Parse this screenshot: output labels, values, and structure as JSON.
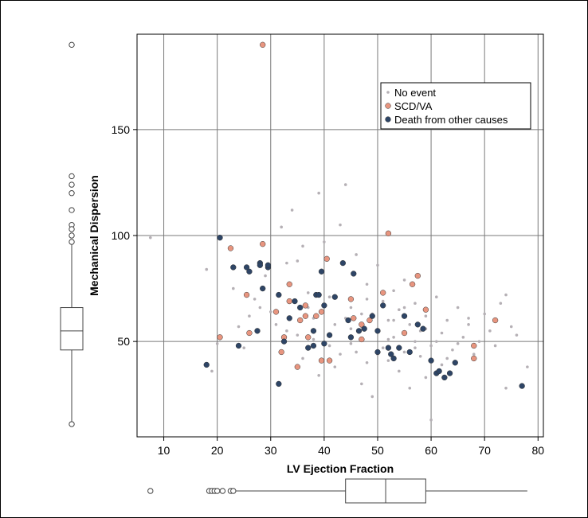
{
  "chart_data": {
    "type": "scatter",
    "xlabel": "LV Ejection Fraction",
    "ylabel": "Mechanical Dispersion",
    "xlim": [
      5,
      81
    ],
    "ylim": [
      5,
      195
    ],
    "x_ticks": [
      10,
      20,
      30,
      40,
      50,
      60,
      70,
      80
    ],
    "y_ticks": [
      50,
      100,
      150
    ],
    "grid": true,
    "legend_placement": "top-right",
    "legend": [
      {
        "label": "No event",
        "series": "no_event"
      },
      {
        "label": "SCD/VA",
        "series": "scd_va"
      },
      {
        "label": "Death from other causes",
        "series": "death_other"
      }
    ],
    "colors": {
      "no_event": "#b5b0b5",
      "scd_va": "#e8957f",
      "death_other": "#2e4566",
      "grid": "#7a7a7a"
    },
    "series": [
      {
        "key": "no_event",
        "name": "No event",
        "points": [
          [
            7.5,
            99
          ],
          [
            18,
            84
          ],
          [
            19,
            36
          ],
          [
            20,
            49
          ],
          [
            23,
            75
          ],
          [
            24,
            57
          ],
          [
            25,
            47
          ],
          [
            26,
            62
          ],
          [
            27,
            70
          ],
          [
            28,
            66
          ],
          [
            29,
            81
          ],
          [
            30,
            64
          ],
          [
            31,
            58
          ],
          [
            32,
            104
          ],
          [
            33,
            87
          ],
          [
            34,
            112
          ],
          [
            35,
            88
          ],
          [
            35,
            53
          ],
          [
            36,
            95
          ],
          [
            37,
            73
          ],
          [
            38,
            51
          ],
          [
            38,
            61
          ],
          [
            39,
            120
          ],
          [
            40,
            97
          ],
          [
            41,
            71
          ],
          [
            42,
            58
          ],
          [
            43,
            44
          ],
          [
            43,
            105
          ],
          [
            44,
            124
          ],
          [
            45,
            66
          ],
          [
            45,
            49
          ],
          [
            46,
            91
          ],
          [
            47,
            57
          ],
          [
            48,
            77
          ],
          [
            48,
            40
          ],
          [
            49,
            63
          ],
          [
            50,
            55
          ],
          [
            50,
            86
          ],
          [
            51,
            47
          ],
          [
            51,
            69
          ],
          [
            52,
            60
          ],
          [
            52,
            41
          ],
          [
            53,
            74
          ],
          [
            53,
            52
          ],
          [
            54,
            65
          ],
          [
            55,
            45
          ],
          [
            55,
            79
          ],
          [
            56,
            58
          ],
          [
            57,
            50
          ],
          [
            57,
            68
          ],
          [
            58,
            55
          ],
          [
            58,
            43
          ],
          [
            59,
            62
          ],
          [
            60,
            48
          ],
          [
            60,
            13
          ],
          [
            61,
            71
          ],
          [
            62,
            54
          ],
          [
            62,
            39
          ],
          [
            63,
            60
          ],
          [
            64,
            46
          ],
          [
            65,
            66
          ],
          [
            66,
            52
          ],
          [
            67,
            58
          ],
          [
            68,
            44
          ],
          [
            69,
            50
          ],
          [
            70,
            63
          ],
          [
            71,
            55
          ],
          [
            72,
            48
          ],
          [
            73,
            68
          ],
          [
            74,
            72
          ],
          [
            74,
            28
          ],
          [
            75,
            57
          ],
          [
            76,
            53
          ],
          [
            78,
            38
          ],
          [
            36,
            42
          ],
          [
            39,
            34
          ],
          [
            42,
            38
          ],
          [
            47,
            30
          ],
          [
            49,
            24
          ],
          [
            54,
            36
          ],
          [
            56,
            28
          ],
          [
            59,
            33
          ],
          [
            33,
            55
          ],
          [
            37,
            66
          ],
          [
            41,
            48
          ],
          [
            44,
            61
          ],
          [
            46,
            45
          ],
          [
            48,
            70
          ],
          [
            50,
            44
          ],
          [
            53,
            60
          ],
          [
            55,
            66
          ],
          [
            57,
            47
          ],
          [
            59,
            56
          ],
          [
            61,
            50
          ],
          [
            63,
            42
          ],
          [
            65,
            49
          ],
          [
            67,
            61
          ],
          [
            45,
            56
          ],
          [
            47,
            63
          ],
          [
            52,
            51
          ]
        ]
      },
      {
        "key": "scd_va",
        "name": "SCD/VA",
        "points": [
          [
            28.5,
            190
          ],
          [
            20.5,
            52
          ],
          [
            22.5,
            94
          ],
          [
            25.5,
            72
          ],
          [
            26,
            54
          ],
          [
            28.5,
            96
          ],
          [
            31,
            64
          ],
          [
            32,
            45
          ],
          [
            32.5,
            52
          ],
          [
            33.5,
            69
          ],
          [
            33.5,
            77
          ],
          [
            35,
            38
          ],
          [
            35.5,
            60
          ],
          [
            36.5,
            62
          ],
          [
            36.5,
            67
          ],
          [
            37,
            52
          ],
          [
            38.5,
            62
          ],
          [
            39.5,
            64
          ],
          [
            39.5,
            41
          ],
          [
            40.5,
            89
          ],
          [
            41,
            41
          ],
          [
            45,
            70
          ],
          [
            45.5,
            61
          ],
          [
            47,
            58
          ],
          [
            47,
            51
          ],
          [
            48.5,
            60
          ],
          [
            51,
            73
          ],
          [
            52,
            101
          ],
          [
            55,
            54
          ],
          [
            56.5,
            77
          ],
          [
            57.5,
            81
          ],
          [
            59,
            65
          ],
          [
            68,
            48
          ],
          [
            68,
            42
          ],
          [
            72,
            60
          ]
        ]
      },
      {
        "key": "death_other",
        "name": "Death from other causes",
        "points": [
          [
            18,
            39
          ],
          [
            20.5,
            99
          ],
          [
            23,
            85
          ],
          [
            24,
            48
          ],
          [
            25.5,
            85
          ],
          [
            26,
            83
          ],
          [
            27.5,
            55
          ],
          [
            28,
            87
          ],
          [
            28,
            86
          ],
          [
            28.5,
            75
          ],
          [
            29.5,
            85
          ],
          [
            29.5,
            86
          ],
          [
            31.5,
            72
          ],
          [
            31.5,
            30
          ],
          [
            32.5,
            50
          ],
          [
            33.5,
            61
          ],
          [
            34.5,
            69
          ],
          [
            35.5,
            66
          ],
          [
            37,
            47
          ],
          [
            38,
            48
          ],
          [
            38,
            55
          ],
          [
            38.5,
            72
          ],
          [
            39,
            72
          ],
          [
            39.5,
            83
          ],
          [
            40,
            67
          ],
          [
            40,
            49
          ],
          [
            41,
            53
          ],
          [
            42,
            71
          ],
          [
            43.5,
            87
          ],
          [
            44.5,
            60
          ],
          [
            45,
            52
          ],
          [
            45.5,
            82
          ],
          [
            46.5,
            55
          ],
          [
            47.5,
            56
          ],
          [
            49,
            62
          ],
          [
            50,
            55
          ],
          [
            50,
            45
          ],
          [
            51,
            67
          ],
          [
            52,
            47
          ],
          [
            52.5,
            44
          ],
          [
            53,
            42
          ],
          [
            54,
            47
          ],
          [
            55,
            62
          ],
          [
            56,
            45
          ],
          [
            57.5,
            58
          ],
          [
            58.5,
            56
          ],
          [
            60,
            41
          ],
          [
            61,
            35
          ],
          [
            61.5,
            36
          ],
          [
            62.5,
            33
          ],
          [
            63.5,
            35
          ],
          [
            64.5,
            40
          ],
          [
            77,
            29
          ]
        ]
      }
    ],
    "marginal_boxplot_y": {
      "q1": 46,
      "median": 55,
      "q3": 66,
      "whisker_low": 11,
      "whisker_high": 96,
      "outliers": [
        190,
        128,
        124,
        120,
        112,
        105,
        103,
        100,
        97
      ]
    },
    "marginal_boxplot_x": {
      "q1": 44,
      "median": 51.5,
      "q3": 59,
      "whisker_low": 23,
      "whisker_high": 78,
      "outliers": [
        7.5,
        18.5,
        19,
        19.5,
        20,
        21,
        22.5,
        23
      ]
    }
  }
}
